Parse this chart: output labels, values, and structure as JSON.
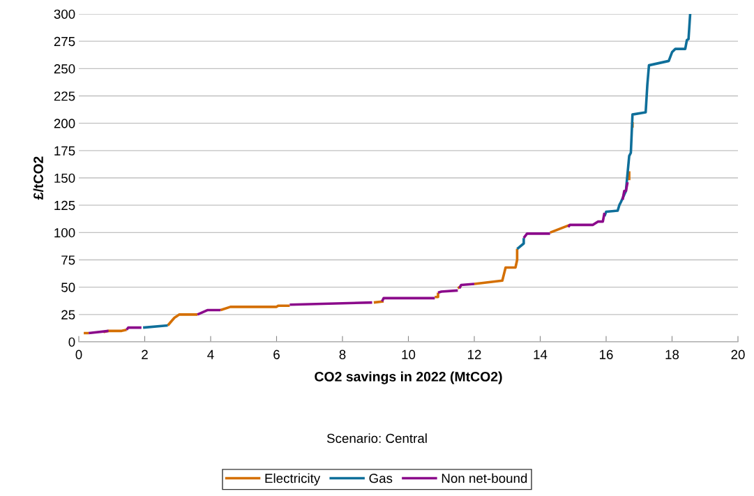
{
  "chart_data": {
    "type": "line",
    "xlabel": "CO2 savings in 2022 (MtCO2)",
    "ylabel": "£/tCO2",
    "annotations": [
      "Scenario: Central"
    ],
    "xlim": [
      0,
      20
    ],
    "xticks": [
      0,
      2,
      4,
      6,
      8,
      10,
      12,
      14,
      16,
      18,
      20
    ],
    "ylim": [
      0,
      300
    ],
    "yticks": [
      0,
      25,
      50,
      75,
      100,
      125,
      150,
      175,
      200,
      225,
      250,
      275,
      300
    ],
    "grid": "y",
    "legend": "bottom",
    "marker": "none",
    "line_style": "solid",
    "series": [
      {
        "name": "Electricity",
        "color": "#d46f00",
        "x": [
          0.15,
          0.3,
          null,
          0.75,
          0.9,
          1.3,
          1.45,
          null,
          2.7,
          2.9,
          3.05,
          3.6,
          null,
          4.3,
          4.6,
          6.0,
          6.05,
          6.4,
          null,
          8.95,
          9.25,
          null,
          10.8,
          10.9,
          10.9,
          null,
          11.5,
          11.6,
          null,
          12.0,
          12.85,
          12.9,
          12.95,
          13.25,
          13.3,
          13.3,
          null,
          14.3,
          14.9,
          null,
          16.7,
          16.7,
          null,
          16.8,
          16.8
        ],
        "values": [
          8,
          8,
          null,
          9,
          10,
          10,
          11,
          null,
          15,
          22,
          25,
          25,
          null,
          29,
          32,
          32,
          33,
          33,
          null,
          36,
          37,
          null,
          41,
          41,
          45,
          null,
          49,
          51,
          null,
          53,
          56,
          62,
          68,
          68,
          75,
          85,
          null,
          100,
          107,
          null,
          148,
          156,
          null,
          196,
          201
        ]
      },
      {
        "name": "Gas",
        "color": "#0f6f9a",
        "x": [
          1.95,
          2.7,
          null,
          13.3,
          13.5,
          13.5,
          null,
          15.95,
          16.0,
          16.35,
          16.4,
          16.45,
          16.6,
          16.7,
          16.75,
          16.8,
          17.2,
          17.25,
          17.3,
          17.9,
          18.0,
          18.1,
          18.4,
          18.45,
          18.5,
          18.55
        ],
        "values": [
          13,
          15,
          null,
          85,
          90,
          95,
          null,
          115,
          119,
          120,
          125,
          128,
          138,
          170,
          173,
          208,
          210,
          235,
          253,
          257,
          265,
          268,
          268,
          276,
          277,
          300
        ]
      },
      {
        "name": "Non net-bound",
        "color": "#8b0a8b",
        "x": [
          0.3,
          0.9,
          null,
          1.45,
          1.5,
          1.9,
          null,
          3.6,
          3.9,
          4.3,
          null,
          6.4,
          8.9,
          null,
          9.2,
          9.25,
          10.8,
          null,
          10.9,
          11.0,
          11.5,
          null,
          11.55,
          11.6,
          12.0,
          null,
          13.5,
          13.6,
          14.3,
          null,
          14.85,
          14.9,
          15.6,
          15.75,
          15.9,
          15.95,
          null,
          16.5,
          16.55,
          16.6,
          16.65
        ],
        "values": [
          8,
          10,
          null,
          11,
          13,
          13,
          null,
          25,
          29,
          29,
          null,
          34,
          36,
          null,
          37,
          40,
          40,
          null,
          45,
          46,
          47,
          null,
          49,
          52,
          53,
          null,
          95,
          99,
          99,
          null,
          105,
          107,
          107,
          110,
          110,
          118,
          null,
          130,
          138,
          138,
          146
        ]
      }
    ]
  }
}
